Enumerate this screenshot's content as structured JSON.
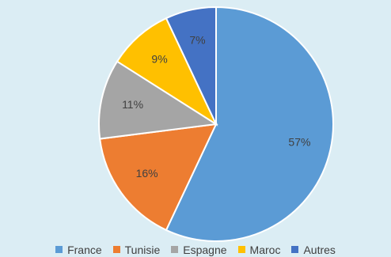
{
  "chart_data": {
    "type": "pie",
    "title": "",
    "categories": [
      "France",
      "Tunisie",
      "Espagne",
      "Maroc",
      "Autres"
    ],
    "values": [
      57,
      16,
      11,
      9,
      7
    ],
    "labels": [
      "57%",
      "16%",
      "11%",
      "9%",
      "7%"
    ],
    "colors": [
      "#5b9bd5",
      "#ed7d31",
      "#a5a5a5",
      "#ffc000",
      "#4472c4"
    ],
    "start_angle_deg": 0,
    "direction": "clockwise",
    "legend_position": "bottom"
  }
}
